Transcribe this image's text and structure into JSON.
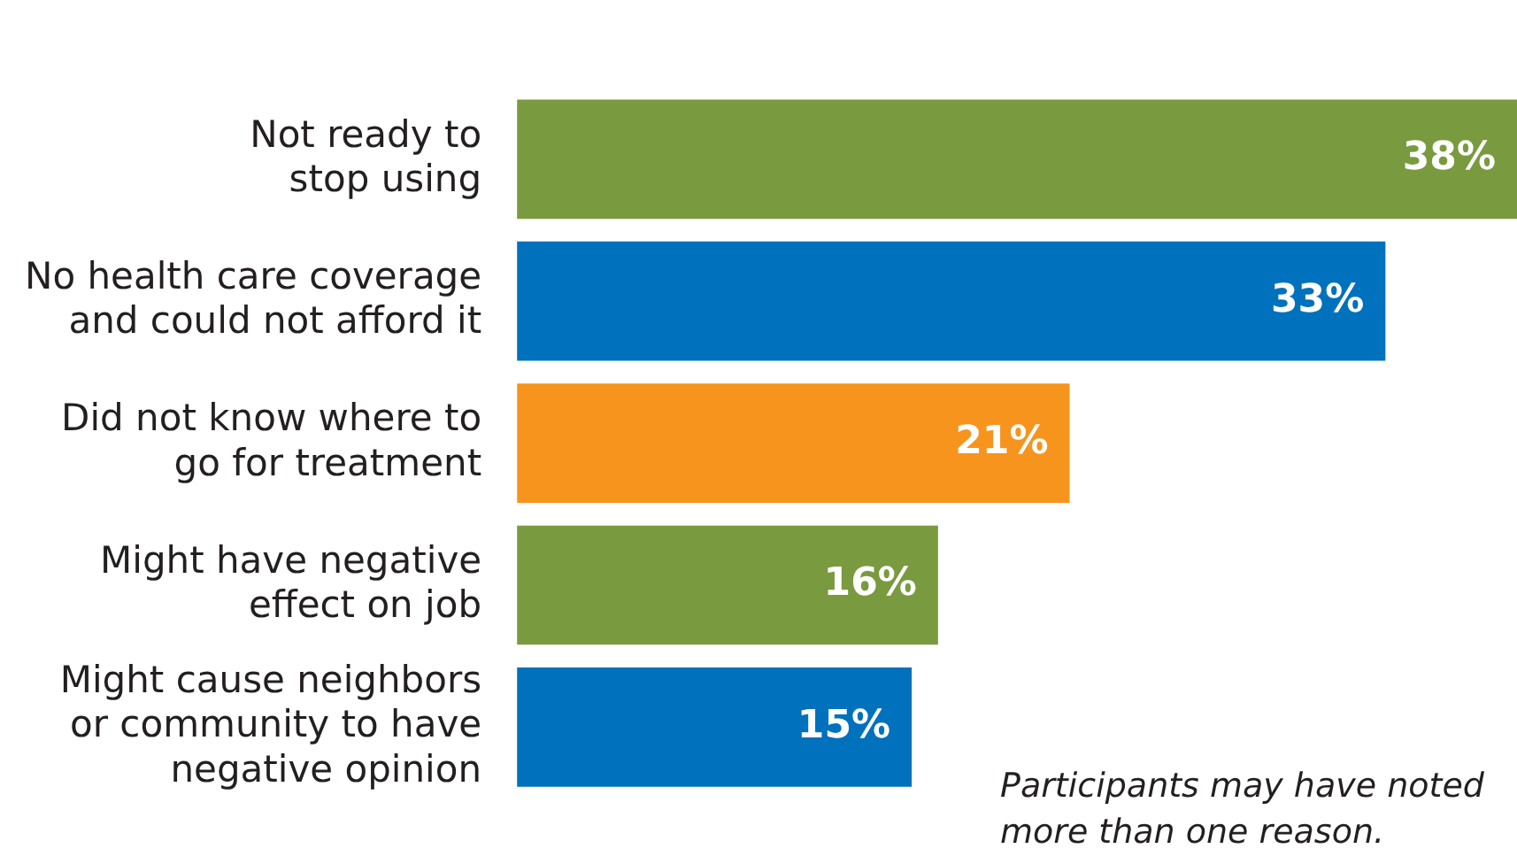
{
  "chart_data": {
    "type": "bar",
    "orientation": "horizontal",
    "categories": [
      "Not ready to\nstop using",
      "No health care coverage\nand could not afford it",
      "Did not know where to\ngo for treatment",
      "Might have negative\neffect on job",
      "Might cause neighbors\nor community to have\nnegative opinion"
    ],
    "values": [
      38,
      33,
      21,
      16,
      15
    ],
    "colors": [
      "#7a9a3f",
      "#0071bc",
      "#f7941d",
      "#7a9a3f",
      "#0071bc"
    ],
    "value_labels": [
      "38%",
      "33%",
      "21%",
      "16%",
      "15%"
    ],
    "annotations": [
      "Participants may have noted\nmore than one reason."
    ],
    "grid": false,
    "legend": false
  }
}
